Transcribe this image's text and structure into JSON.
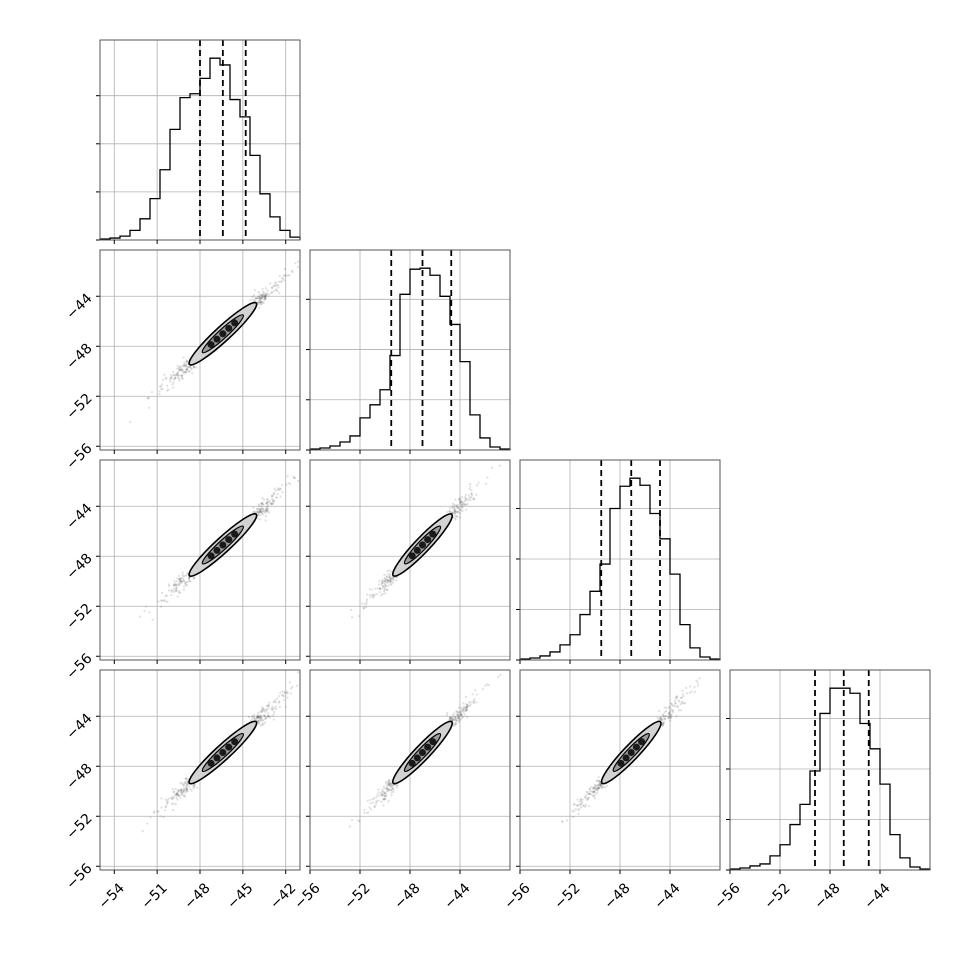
{
  "chart_data": {
    "type": "corner",
    "parameters": 4,
    "grid": true,
    "quantile_lines": "dashed",
    "colors": {
      "line": "#000000",
      "grid": "#b0b0b0",
      "scatter": "#555555",
      "fill": "#d3d3d3"
    },
    "histograms": [
      {
        "param": 0,
        "range": [
          -55,
          -41
        ],
        "counts": [
          1,
          2,
          4,
          10,
          22,
          43,
          73,
          115,
          148,
          152,
          168,
          189,
          182,
          146,
          128,
          88,
          48,
          24,
          10,
          3
        ],
        "quantiles": [
          -48.0,
          -46.4,
          -44.8
        ]
      },
      {
        "param": 1,
        "range": [
          -56,
          -40
        ],
        "counts": [
          1,
          2,
          4,
          8,
          14,
          32,
          45,
          60,
          94,
          155,
          180,
          181,
          174,
          153,
          125,
          88,
          35,
          12,
          3,
          1
        ],
        "quantiles": [
          -49.5,
          -47.0,
          -44.7
        ]
      },
      {
        "param": 2,
        "range": [
          -56,
          -40
        ],
        "counts": [
          1,
          2,
          4,
          8,
          15,
          25,
          45,
          68,
          95,
          150,
          172,
          180,
          173,
          145,
          120,
          85,
          35,
          12,
          3,
          1
        ],
        "quantiles": [
          -49.5,
          -47.1,
          -44.8
        ]
      },
      {
        "param": 3,
        "range": [
          -56,
          -40
        ],
        "counts": [
          1,
          2,
          4,
          6,
          14,
          25,
          45,
          65,
          98,
          155,
          180,
          180,
          175,
          145,
          120,
          85,
          35,
          12,
          3,
          1
        ],
        "quantiles": [
          -49.2,
          -46.9,
          -44.9
        ]
      }
    ],
    "ranges": [
      [
        -55,
        -41
      ],
      [
        -56,
        -40
      ],
      [
        -56,
        -40
      ],
      [
        -56,
        -40
      ]
    ],
    "ylim_2d": [
      -56.3,
      -40.3
    ],
    "x_ticks": [
      [
        -54,
        -51,
        -48,
        -45,
        -42
      ],
      [
        -56,
        -52,
        -48,
        -44
      ],
      [
        -56,
        -52,
        -48,
        -44
      ],
      [
        -56,
        -52,
        -48,
        -44
      ]
    ],
    "x_tick_labels": [
      [
        "−54",
        "−51",
        "−48",
        "−45",
        "−42"
      ],
      [
        "−56",
        "−52",
        "−48",
        "−44"
      ],
      [
        "−56",
        "−52",
        "−48",
        "−44"
      ],
      [
        "−56",
        "−52",
        "−48",
        "−44"
      ]
    ],
    "y_ticks": [
      -56,
      -52,
      -48,
      -44
    ],
    "y_tick_labels": [
      "−56",
      "−52",
      "−48",
      "−44"
    ]
  }
}
